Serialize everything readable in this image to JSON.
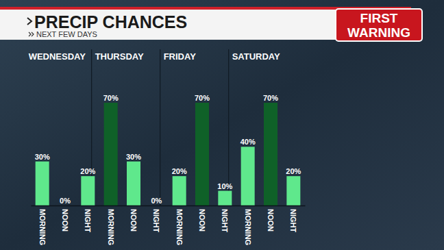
{
  "chart_data": {
    "type": "bar",
    "title": "PRECIP CHANCES",
    "subtitle": "NEXT FEW DAYS",
    "badge": [
      "FIRST",
      "WARNING"
    ],
    "groups": [
      "WEDNESDAY",
      "THURSDAY",
      "FRIDAY",
      "SATURDAY"
    ],
    "categories": [
      "MORNING",
      "NOON",
      "NIGHT",
      "MORNING",
      "NOON",
      "NIGHT",
      "MORNING",
      "NOON",
      "NIGHT",
      "MORNING",
      "NOON",
      "NIGHT"
    ],
    "values": [
      30,
      0,
      20,
      70,
      30,
      0,
      20,
      70,
      10,
      40,
      70,
      20
    ],
    "value_labels": [
      "30%",
      "0%",
      "20%",
      "70%",
      "30%",
      "0%",
      "20%",
      "70%",
      "10%",
      "40%",
      "70%",
      "20%"
    ],
    "colors": [
      "#5fe88c",
      "#5fe88c",
      "#5fe88c",
      "#0f6128",
      "#5fe88c",
      "#5fe88c",
      "#5fe88c",
      "#0f6128",
      "#5fe88c",
      "#5fe88c",
      "#0f6128",
      "#5fe88c"
    ],
    "ylim": [
      0,
      70
    ],
    "data_labels": true,
    "tick_labels": "x",
    "grid": false
  }
}
